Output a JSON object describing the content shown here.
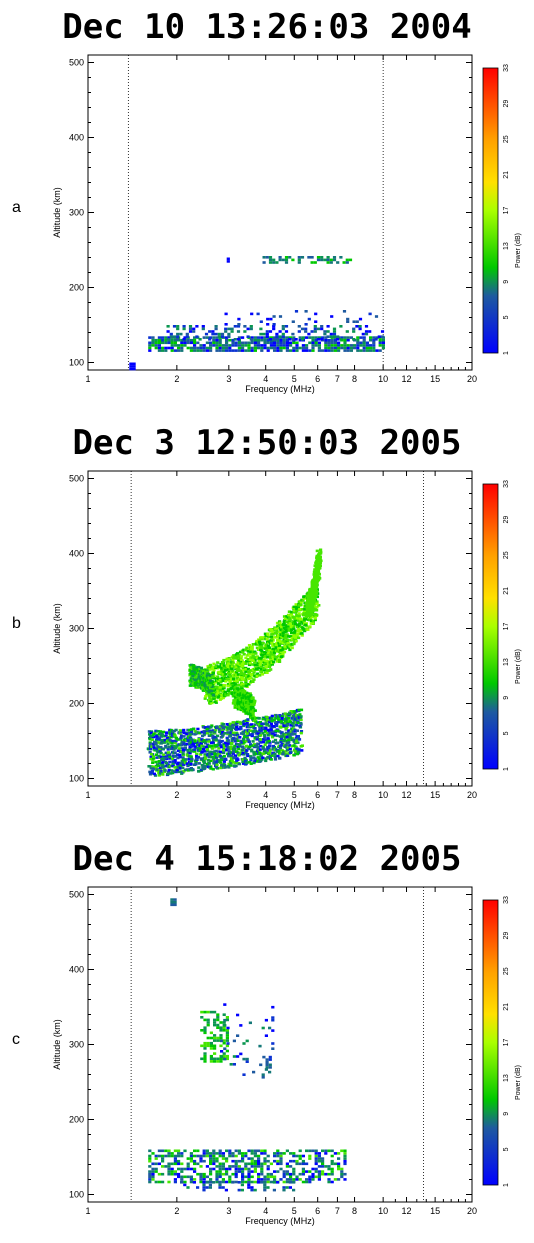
{
  "chart_data": [
    {
      "type": "heatmap",
      "panel_label": "a",
      "title": "Dec 10 13:26:03 2004",
      "xlabel": "Frequency (MHz)",
      "ylabel": "Altitude (km)",
      "x_scale": "log",
      "xlim": [
        1,
        20
      ],
      "ylim": [
        90,
        510
      ],
      "x_ticks": [
        "1",
        "2",
        "3",
        "4",
        "5",
        "6",
        "7",
        "8",
        "10",
        "12",
        "15",
        "20"
      ],
      "y_ticks": [
        "100",
        "200",
        "300",
        "400",
        "500"
      ],
      "dotted_lines_mhz": [
        1.37,
        10.0
      ],
      "colorbar": {
        "label": "Power (dB)",
        "ticks": [
          "1",
          "5",
          "9",
          "13",
          "17",
          "21",
          "25",
          "29",
          "33"
        ],
        "range": [
          1,
          33
        ]
      },
      "clusters": [
        {
          "f_min": 1.6,
          "f_max": 10.0,
          "alt_min": 115,
          "alt_max": 135,
          "power_min": 1,
          "power_max": 13,
          "density": 0.8
        },
        {
          "f_min": 1.8,
          "f_max": 10.0,
          "alt_min": 130,
          "alt_max": 150,
          "power_min": 1,
          "power_max": 11,
          "density": 0.3
        },
        {
          "f_min": 2.9,
          "f_max": 10.0,
          "alt_min": 150,
          "alt_max": 170,
          "power_min": 1,
          "power_max": 7,
          "density": 0.1
        },
        {
          "f_min": 3.9,
          "f_max": 7.8,
          "alt_min": 232,
          "alt_max": 242,
          "power_min": 5,
          "power_max": 13,
          "density": 0.45
        },
        {
          "f_min": 2.95,
          "f_max": 3.0,
          "alt_min": 235,
          "alt_max": 240,
          "power_min": 1,
          "power_max": 3,
          "density": 1.0
        },
        {
          "f_min": 1.38,
          "f_max": 1.42,
          "alt_min": 92,
          "alt_max": 100,
          "power_min": 1,
          "power_max": 3,
          "density": 1.0
        }
      ]
    },
    {
      "type": "heatmap",
      "panel_label": "b",
      "title": "Dec  3 12:50:03 2005",
      "xlabel": "Frequency (MHz)",
      "ylabel": "Altitude (km)",
      "x_scale": "log",
      "xlim": [
        1,
        20
      ],
      "ylim": [
        90,
        510
      ],
      "x_ticks": [
        "1",
        "2",
        "3",
        "4",
        "5",
        "6",
        "7",
        "8",
        "10",
        "12",
        "15",
        "20"
      ],
      "y_ticks": [
        "100",
        "200",
        "300",
        "400",
        "500"
      ],
      "dotted_lines_mhz": [
        1.4,
        13.7
      ],
      "colorbar": {
        "label": "Power (dB)",
        "ticks": [
          "1",
          "5",
          "9",
          "13",
          "17",
          "21",
          "25",
          "29",
          "33"
        ],
        "range": [
          1,
          33
        ]
      },
      "traces": [
        {
          "f_start": 1.6,
          "f_end": 5.2,
          "alt_start": 135,
          "alt_end": 165,
          "width": 28,
          "power_min": 1,
          "power_max": 15,
          "density": 0.6
        },
        {
          "f_start": 2.5,
          "f_end": 5.9,
          "alt_start": 225,
          "alt_end": 340,
          "width": 22,
          "power_min": 11,
          "power_max": 17,
          "density": 0.55
        },
        {
          "f_start": 2.2,
          "f_end": 2.6,
          "alt_start": 240,
          "alt_end": 225,
          "width": 12,
          "power_min": 9,
          "power_max": 15,
          "density": 0.4
        },
        {
          "f_start": 3.1,
          "f_end": 3.6,
          "alt_start": 210,
          "alt_end": 195,
          "width": 10,
          "power_min": 11,
          "power_max": 15,
          "density": 0.4
        },
        {
          "f_start": 5.5,
          "f_end": 6.0,
          "alt_start": 330,
          "alt_end": 395,
          "width": 12,
          "power_min": 13,
          "power_max": 15,
          "density": 0.4
        }
      ]
    },
    {
      "type": "heatmap",
      "panel_label": "c",
      "title": "Dec  4 15:18:02 2005",
      "xlabel": "Frequency (MHz)",
      "ylabel": "Altitude (km)",
      "x_scale": "log",
      "xlim": [
        1,
        20
      ],
      "ylim": [
        90,
        510
      ],
      "x_ticks": [
        "1",
        "2",
        "3",
        "4",
        "5",
        "6",
        "7",
        "8",
        "10",
        "12",
        "15",
        "20"
      ],
      "y_ticks": [
        "100",
        "200",
        "300",
        "400",
        "500"
      ],
      "dotted_lines_mhz": [
        1.4,
        13.7
      ],
      "colorbar": {
        "label": "Power (dB)",
        "ticks": [
          "1",
          "5",
          "9",
          "13",
          "17",
          "21",
          "25",
          "29",
          "33"
        ],
        "range": [
          1,
          33
        ]
      },
      "clusters": [
        {
          "f_min": 1.6,
          "f_max": 7.5,
          "alt_min": 115,
          "alt_max": 160,
          "power_min": 1,
          "power_max": 15,
          "density": 0.55
        },
        {
          "f_min": 2.0,
          "f_max": 5.0,
          "alt_min": 105,
          "alt_max": 118,
          "power_min": 1,
          "power_max": 11,
          "density": 0.3
        },
        {
          "f_min": 2.4,
          "f_max": 2.95,
          "alt_min": 278,
          "alt_max": 345,
          "power_min": 9,
          "power_max": 15,
          "density": 0.45
        },
        {
          "f_min": 2.8,
          "f_max": 4.2,
          "alt_min": 255,
          "alt_max": 355,
          "power_min": 1,
          "power_max": 11,
          "density": 0.08
        },
        {
          "f_min": 3.8,
          "f_max": 4.1,
          "alt_min": 270,
          "alt_max": 285,
          "power_min": 3,
          "power_max": 9,
          "density": 0.5
        },
        {
          "f_min": 1.9,
          "f_max": 1.95,
          "alt_min": 488,
          "alt_max": 495,
          "power_min": 5,
          "power_max": 9,
          "density": 1.0
        }
      ]
    }
  ]
}
